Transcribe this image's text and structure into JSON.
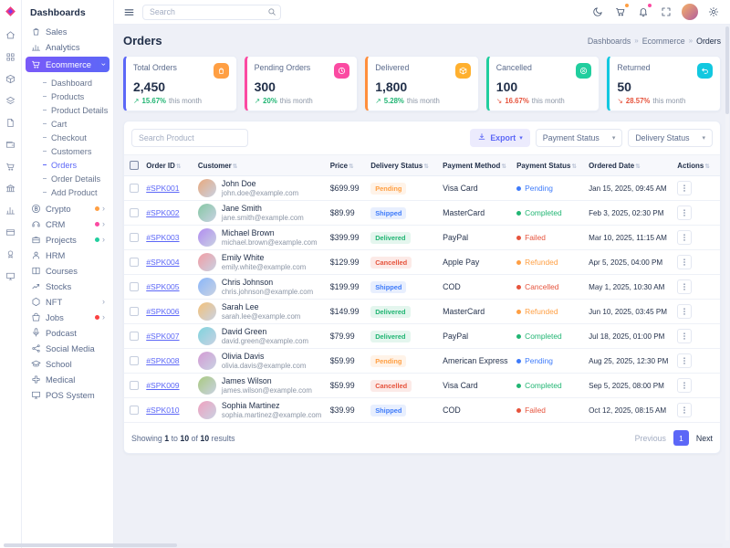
{
  "app": {
    "primary": "#5c67f7",
    "trend_up_color": "#21b573",
    "trend_down_color": "#e6533c"
  },
  "glyphs": {
    "caret_down": "▾",
    "sort": "⇅",
    "chevron_right": "›",
    "trend_up": "↗",
    "trend_down": "↘"
  },
  "topbar": {
    "search_placeholder": "Search",
    "icons": [
      {
        "name": "moon-icon"
      },
      {
        "name": "cart-icon",
        "badge_color": "#ff9f43"
      },
      {
        "name": "bell-icon",
        "badge_color": "#fb4aa2"
      },
      {
        "name": "expand-icon"
      }
    ],
    "avatar": "user-avatar",
    "settings_icon": "gear-icon"
  },
  "icon_rail": {
    "icons": [
      "home-icon",
      "apps-icon",
      "box-icon",
      "layers-icon",
      "file-icon",
      "wallet-icon",
      "cart-icon",
      "bank-icon",
      "chart-icon",
      "card-icon",
      "award-icon",
      "monitor-icon"
    ]
  },
  "sidebar": {
    "title": "Dashboards",
    "items": [
      {
        "label": "Sales",
        "icon": "sales-icon"
      },
      {
        "label": "Analytics",
        "icon": "analytics-icon"
      },
      {
        "label": "Ecommerce",
        "icon": "ecommerce-icon",
        "active": true,
        "chevron": true,
        "children": [
          {
            "label": "Dashboard"
          },
          {
            "label": "Products"
          },
          {
            "label": "Product Details"
          },
          {
            "label": "Cart"
          },
          {
            "label": "Checkout"
          },
          {
            "label": "Customers"
          },
          {
            "label": "Orders",
            "active": true
          },
          {
            "label": "Order Details"
          },
          {
            "label": "Add Product"
          }
        ]
      },
      {
        "label": "Crypto",
        "icon": "crypto-icon",
        "chevron": true,
        "badge_color": "#ff9f43"
      },
      {
        "label": "CRM",
        "icon": "crm-icon",
        "chevron": true,
        "badge_color": "#fb4aa2"
      },
      {
        "label": "Projects",
        "icon": "projects-icon",
        "chevron": true,
        "badge_color": "#21ce9e"
      },
      {
        "label": "HRM",
        "icon": "hrm-icon"
      },
      {
        "label": "Courses",
        "icon": "courses-icon"
      },
      {
        "label": "Stocks",
        "icon": "stocks-icon"
      },
      {
        "label": "NFT",
        "icon": "nft-icon",
        "chevron": true
      },
      {
        "label": "Jobs",
        "icon": "jobs-icon",
        "chevron": true,
        "badge_color": "#fb4242"
      },
      {
        "label": "Podcast",
        "icon": "podcast-icon"
      },
      {
        "label": "Social Media",
        "icon": "social-media-icon"
      },
      {
        "label": "School",
        "icon": "school-icon"
      },
      {
        "label": "Medical",
        "icon": "medical-icon"
      },
      {
        "label": "POS System",
        "icon": "pos-icon"
      }
    ]
  },
  "page": {
    "title": "Orders",
    "breadcrumb": [
      "Dashboards",
      "Ecommerce",
      "Orders"
    ],
    "breadcrumb_separator": "»"
  },
  "stats": [
    {
      "label": "Total Orders",
      "value": "2,450",
      "trend": "15.67%",
      "direction": "up",
      "note": "this month",
      "accent": "#5c67f7",
      "icon_bg": "#ff9f43",
      "icon": "bag-icon"
    },
    {
      "label": "Pending Orders",
      "value": "300",
      "trend": "20%",
      "direction": "up",
      "note": "this month",
      "accent": "#fb4aa2",
      "icon_bg": "#fb4aa2",
      "icon": "clock-icon"
    },
    {
      "label": "Delivered",
      "value": "1,800",
      "trend": "5.28%",
      "direction": "up",
      "note": "this month",
      "accent": "#ff8e3c",
      "icon_bg": "#ffb02e",
      "icon": "box-icon"
    },
    {
      "label": "Cancelled",
      "value": "100",
      "trend": "16.67%",
      "direction": "down",
      "note": "this month",
      "accent": "#21ce9e",
      "icon_bg": "#21ce9e",
      "icon": "cancel-icon"
    },
    {
      "label": "Returned",
      "value": "50",
      "trend": "28.57%",
      "direction": "down",
      "note": "this month",
      "accent": "#12c8e0",
      "icon_bg": "#12c8e0",
      "icon": "return-icon"
    }
  ],
  "toolbar": {
    "search_placeholder": "Search Product",
    "export_label": "Export",
    "export_icon": "download-icon",
    "payment_filter": "Payment Status",
    "delivery_filter": "Delivery Status"
  },
  "status_colors": {
    "delivery": {
      "Pending": "#ff9f43",
      "Shipped": "#3e7bfa",
      "Delivered": "#21b573",
      "Cancelled": "#e6533c"
    },
    "payment": {
      "Pending": "#3e7bfa",
      "Completed": "#21b573",
      "Failed": "#e6533c",
      "Refunded": "#ff9f43",
      "Cancelled": "#e6533c"
    }
  },
  "table": {
    "columns": [
      "Order ID",
      "Customer",
      "Price",
      "Delivery Status",
      "Payment Method",
      "Payment Status",
      "Ordered Date",
      "Actions"
    ],
    "rows": [
      {
        "order_id": "#SPK001",
        "name": "John Doe",
        "email": "john.doe@example.com",
        "price": "$699.99",
        "delivery_status": "Pending",
        "payment_method": "Visa Card",
        "payment_status": "Pending",
        "date": "Jan 15, 2025, 09:45 AM"
      },
      {
        "order_id": "#SPK002",
        "name": "Jane Smith",
        "email": "jane.smith@example.com",
        "price": "$89.99",
        "delivery_status": "Shipped",
        "payment_method": "MasterCard",
        "payment_status": "Completed",
        "date": "Feb 3, 2025, 02:30 PM"
      },
      {
        "order_id": "#SPK003",
        "name": "Michael Brown",
        "email": "michael.brown@example.com",
        "price": "$399.99",
        "delivery_status": "Delivered",
        "payment_method": "PayPal",
        "payment_status": "Failed",
        "date": "Mar 10, 2025, 11:15 AM"
      },
      {
        "order_id": "#SPK004",
        "name": "Emily White",
        "email": "emily.white@example.com",
        "price": "$129.99",
        "delivery_status": "Cancelled",
        "payment_method": "Apple Pay",
        "payment_status": "Refunded",
        "date": "Apr 5, 2025, 04:00 PM"
      },
      {
        "order_id": "#SPK005",
        "name": "Chris Johnson",
        "email": "chris.johnson@example.com",
        "price": "$199.99",
        "delivery_status": "Shipped",
        "payment_method": "COD",
        "payment_status": "Cancelled",
        "date": "May 1, 2025, 10:30 AM"
      },
      {
        "order_id": "#SPK006",
        "name": "Sarah Lee",
        "email": "sarah.lee@example.com",
        "price": "$149.99",
        "delivery_status": "Delivered",
        "payment_method": "MasterCard",
        "payment_status": "Refunded",
        "date": "Jun 10, 2025, 03:45 PM"
      },
      {
        "order_id": "#SPK007",
        "name": "David Green",
        "email": "david.green@example.com",
        "price": "$79.99",
        "delivery_status": "Delivered",
        "payment_method": "PayPal",
        "payment_status": "Completed",
        "date": "Jul 18, 2025, 01:00 PM"
      },
      {
        "order_id": "#SPK008",
        "name": "Olivia Davis",
        "email": "olivia.davis@example.com",
        "price": "$59.99",
        "delivery_status": "Pending",
        "payment_method": "American Express",
        "payment_status": "Pending",
        "date": "Aug 25, 2025, 12:30 PM"
      },
      {
        "order_id": "#SPK009",
        "name": "James Wilson",
        "email": "james.wilson@example.com",
        "price": "$59.99",
        "delivery_status": "Cancelled",
        "payment_method": "Visa Card",
        "payment_status": "Completed",
        "date": "Sep 5, 2025, 08:00 PM"
      },
      {
        "order_id": "#SPK010",
        "name": "Sophia Martinez",
        "email": "sophia.martinez@example.com",
        "price": "$39.99",
        "delivery_status": "Shipped",
        "payment_method": "COD",
        "payment_status": "Failed",
        "date": "Oct 12, 2025, 08:15 AM"
      }
    ]
  },
  "summary": {
    "prefix": "Showing",
    "from": "1",
    "to_word": "to",
    "to": "10",
    "of_word": "of",
    "total": "10",
    "results_word": "results"
  },
  "pagination": {
    "previous": "Previous",
    "current": "1",
    "next": "Next"
  }
}
